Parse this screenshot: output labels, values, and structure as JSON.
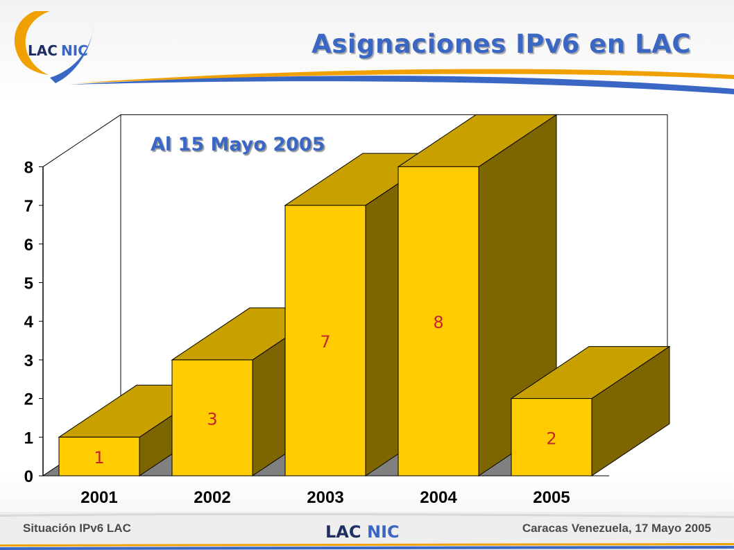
{
  "slide": {
    "title": "Asignaciones IPv6 en LAC",
    "subtitle": "Al 15 Mayo 2005",
    "logo_text": {
      "lac": "LAC",
      "nic": "NIC"
    },
    "footer_left": "Situación IPv6 LAC",
    "footer_right": "Caracas Venezuela, 17 Mayo 2005"
  },
  "colors": {
    "title": "#3a66c4",
    "bar_front": "#ffcc00",
    "bar_top": "#c8a000",
    "bar_side": "#7d6500",
    "value_label": "#c0282d",
    "accent_orange": "#f0a000"
  },
  "chart_data": {
    "type": "bar",
    "style": "3d",
    "categories": [
      "2001",
      "2002",
      "2003",
      "2004",
      "2005"
    ],
    "values": [
      1,
      3,
      7,
      8,
      2
    ],
    "data_labels": [
      "1",
      "3",
      "7",
      "8",
      "2"
    ],
    "y_ticks": [
      "0",
      "1",
      "2",
      "3",
      "4",
      "5",
      "6",
      "7",
      "8"
    ],
    "ylim": [
      0,
      8
    ],
    "grid": false,
    "legend": "none"
  }
}
